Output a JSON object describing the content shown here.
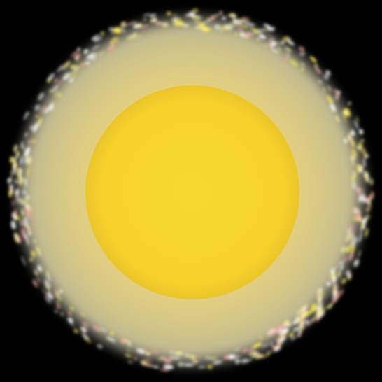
{
  "image": {
    "subject": "sun-glow",
    "colors": {
      "background": "#000000",
      "core": "#f6d52b",
      "core_edge": "#e9c22a",
      "inner_halo": "#f2dc7f",
      "outer_halo": "#fff3a6",
      "rim_highlight": "#ffffff",
      "rim_pink": "#f3a7a0",
      "rim_yellow": "#ffef5a"
    }
  }
}
